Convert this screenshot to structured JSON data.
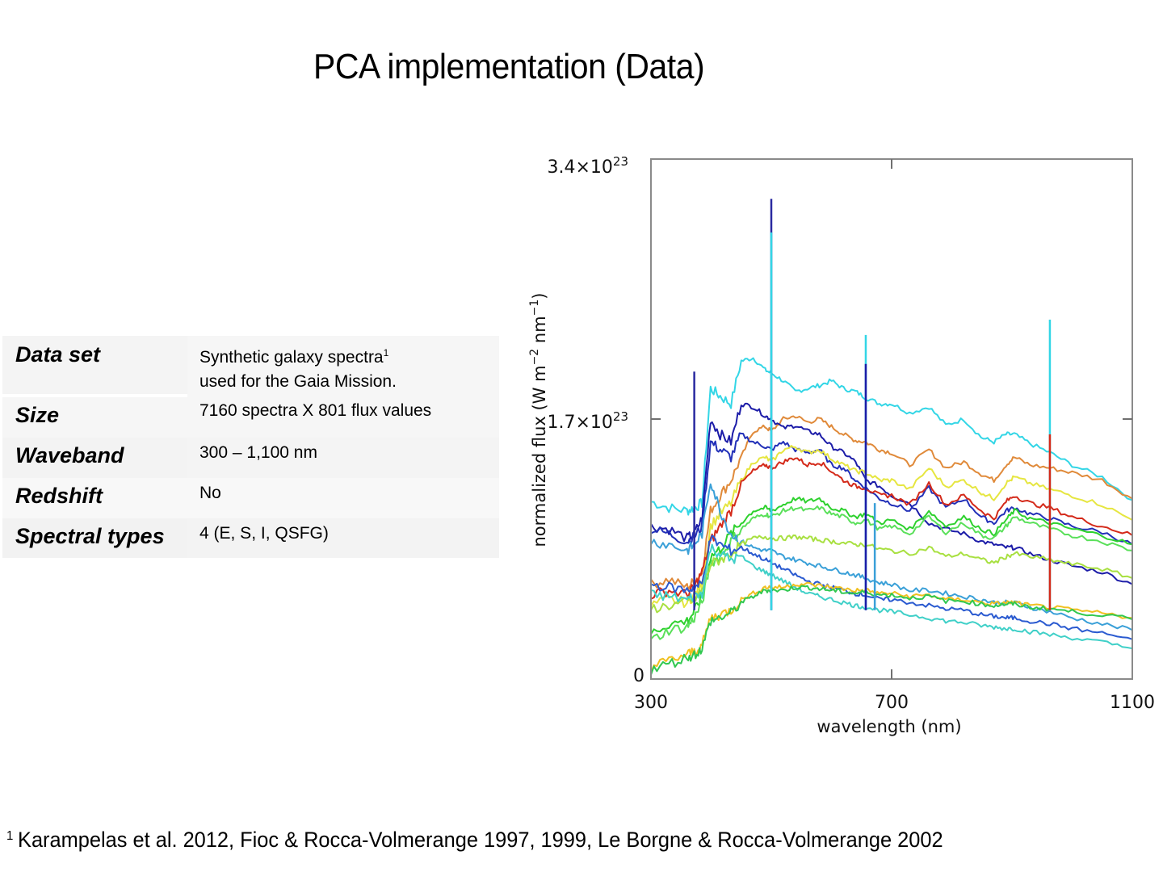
{
  "slide": {
    "title": "PCA implementation (Data)",
    "footnote_marker": "1",
    "footnote": "Karampelas et al. 2012, Fioc & Rocca-Volmerange 1997, 1999, Le Borgne & Rocca-Volmerange 2002"
  },
  "table": {
    "rows": [
      {
        "key": "Data set",
        "value_line1": "Synthetic galaxy spectra",
        "value_sup": "1",
        "value_line2": "used for the Gaia Mission."
      },
      {
        "key": "Size",
        "value": "7160 spectra X 801 flux values"
      },
      {
        "key": "Waveband",
        "value": "300 – 1,100 nm"
      },
      {
        "key": "Redshift",
        "value": "No"
      },
      {
        "key": "Spectral types",
        "value": "4 (E, S, I, QSFG)"
      }
    ]
  },
  "chart_data": {
    "type": "line",
    "title": "",
    "xlabel": "wavelength (nm)",
    "ylabel": "normalized flux (W m^-2 nm^-1)",
    "ylabel_parts": {
      "base": "normalized flux (W m",
      "exp1": "−2",
      "mid": " nm",
      "exp2": "−1",
      "end": ")"
    },
    "xlim": [
      300,
      1100
    ],
    "ylim": [
      0,
      3.4e+23
    ],
    "xticks": [
      300,
      700,
      1100
    ],
    "xtick_labels": [
      "300",
      "700",
      "1100"
    ],
    "yticks": [
      0,
      1.7e+23,
      3.4e+23
    ],
    "ytick_labels": [
      {
        "mantissa": "0",
        "exp": ""
      },
      {
        "mantissa": "1.7×10",
        "exp": "23"
      },
      {
        "mantissa": "3.4×10",
        "exp": "23"
      }
    ],
    "grid": false,
    "legend": "none",
    "units_note": "series values in units of 1e23",
    "x": [
      300,
      330,
      360,
      372,
      385,
      399,
      415,
      433,
      450,
      470,
      490,
      500,
      520,
      540,
      560,
      580,
      600,
      620,
      640,
      657,
      680,
      700,
      730,
      762,
      790,
      820,
      849,
      870,
      890,
      904,
      930,
      963,
      1000,
      1050,
      1100
    ],
    "series": [
      {
        "name": "cyan-top",
        "color": "#33d6e6",
        "values": [
          1.16,
          1.12,
          1.1,
          1.12,
          1.15,
          1.9,
          1.85,
          1.8,
          2.08,
          2.1,
          2.02,
          2.0,
          1.95,
          1.88,
          1.9,
          1.92,
          1.95,
          1.9,
          1.88,
          1.84,
          1.8,
          1.8,
          1.74,
          1.78,
          1.66,
          1.7,
          1.58,
          1.55,
          1.6,
          1.6,
          1.54,
          1.48,
          1.4,
          1.32,
          1.17
        ]
      },
      {
        "name": "orange",
        "color": "#e08a3a",
        "values": [
          0.62,
          0.65,
          0.6,
          0.64,
          0.7,
          1.1,
          1.2,
          1.3,
          1.45,
          1.62,
          1.65,
          1.62,
          1.7,
          1.72,
          1.68,
          1.7,
          1.65,
          1.6,
          1.56,
          1.55,
          1.5,
          1.48,
          1.4,
          1.5,
          1.38,
          1.42,
          1.34,
          1.3,
          1.4,
          1.45,
          1.4,
          1.38,
          1.35,
          1.3,
          1.18
        ]
      },
      {
        "name": "navy-1",
        "color": "#1c1ca8",
        "values": [
          1.0,
          0.98,
          0.92,
          0.95,
          1.05,
          1.7,
          1.6,
          1.55,
          1.8,
          1.78,
          1.72,
          1.7,
          1.64,
          1.66,
          1.62,
          1.6,
          1.52,
          1.48,
          1.42,
          1.3,
          1.26,
          1.2,
          1.15,
          1.02,
          0.98,
          0.95,
          0.9,
          0.88,
          0.86,
          0.86,
          0.82,
          0.78,
          0.74,
          0.7,
          0.62
        ]
      },
      {
        "name": "navy-2",
        "color": "#2230b8",
        "values": [
          0.98,
          0.95,
          0.9,
          0.93,
          1.0,
          1.55,
          1.5,
          1.45,
          1.6,
          1.55,
          1.52,
          1.5,
          1.55,
          1.5,
          1.48,
          1.5,
          1.4,
          1.38,
          1.3,
          1.25,
          1.18,
          1.15,
          1.1,
          1.25,
          1.12,
          1.18,
          1.06,
          1.02,
          1.1,
          1.12,
          1.08,
          1.05,
          1.0,
          0.96,
          0.88
        ]
      },
      {
        "name": "yellow",
        "color": "#e6e640",
        "values": [
          0.48,
          0.52,
          0.5,
          0.55,
          0.62,
          1.0,
          1.08,
          1.15,
          1.3,
          1.42,
          1.45,
          1.42,
          1.5,
          1.52,
          1.48,
          1.5,
          1.44,
          1.4,
          1.36,
          1.35,
          1.3,
          1.3,
          1.24,
          1.38,
          1.26,
          1.3,
          1.22,
          1.18,
          1.28,
          1.32,
          1.28,
          1.24,
          1.2,
          1.14,
          1.04
        ]
      },
      {
        "name": "red",
        "color": "#d42a1a",
        "values": [
          0.55,
          0.58,
          0.55,
          0.6,
          0.7,
          0.9,
          1.0,
          1.1,
          1.28,
          1.36,
          1.4,
          1.38,
          1.42,
          1.45,
          1.4,
          1.42,
          1.36,
          1.3,
          1.26,
          1.25,
          1.2,
          1.2,
          1.14,
          1.28,
          1.14,
          1.2,
          1.1,
          1.05,
          1.16,
          1.2,
          1.15,
          1.12,
          1.06,
          1.0,
          0.94
        ]
      },
      {
        "name": "green-1",
        "color": "#2ed12e",
        "values": [
          0.3,
          0.36,
          0.38,
          0.44,
          0.55,
          0.8,
          0.85,
          0.95,
          1.02,
          1.1,
          1.12,
          1.1,
          1.14,
          1.18,
          1.16,
          1.18,
          1.12,
          1.1,
          1.06,
          1.08,
          1.02,
          1.04,
          0.98,
          1.1,
          1.0,
          1.06,
          0.98,
          0.95,
          1.04,
          1.1,
          1.05,
          1.02,
          0.98,
          0.94,
          0.88
        ]
      },
      {
        "name": "green-2",
        "color": "#5ae05a",
        "values": [
          0.25,
          0.32,
          0.34,
          0.4,
          0.5,
          0.76,
          0.8,
          0.9,
          0.98,
          1.05,
          1.08,
          1.06,
          1.1,
          1.12,
          1.1,
          1.12,
          1.08,
          1.06,
          1.02,
          1.04,
          0.98,
          1.0,
          0.95,
          1.06,
          0.96,
          1.02,
          0.94,
          0.92,
          1.0,
          1.06,
          1.02,
          0.98,
          0.94,
          0.9,
          0.84
        ]
      },
      {
        "name": "teal-blue",
        "color": "#3aa0d8",
        "values": [
          0.9,
          0.88,
          0.84,
          0.88,
          0.95,
          1.3,
          1.1,
          0.95,
          0.9,
          0.86,
          0.84,
          0.84,
          0.8,
          0.78,
          0.76,
          0.74,
          0.72,
          0.7,
          0.68,
          0.66,
          0.63,
          0.62,
          0.58,
          0.58,
          0.56,
          0.54,
          0.52,
          0.5,
          0.5,
          0.5,
          0.47,
          0.44,
          0.4,
          0.36,
          0.32
        ]
      },
      {
        "name": "lime",
        "color": "#a8e040",
        "values": [
          0.46,
          0.48,
          0.5,
          0.52,
          0.58,
          0.75,
          0.78,
          0.82,
          0.88,
          0.92,
          0.93,
          0.92,
          0.92,
          0.93,
          0.92,
          0.91,
          0.9,
          0.89,
          0.88,
          0.88,
          0.85,
          0.84,
          0.82,
          0.86,
          0.8,
          0.82,
          0.78,
          0.76,
          0.8,
          0.82,
          0.8,
          0.78,
          0.75,
          0.72,
          0.66
        ]
      },
      {
        "name": "blue-low",
        "color": "#2a5ad0",
        "values": [
          0.62,
          0.6,
          0.58,
          0.6,
          0.62,
          0.92,
          0.88,
          0.84,
          0.86,
          0.82,
          0.78,
          0.76,
          0.72,
          0.68,
          0.64,
          0.62,
          0.6,
          0.58,
          0.56,
          0.55,
          0.52,
          0.52,
          0.5,
          0.48,
          0.46,
          0.45,
          0.42,
          0.41,
          0.4,
          0.4,
          0.38,
          0.36,
          0.33,
          0.3,
          0.26
        ]
      },
      {
        "name": "cyan-low",
        "color": "#40d0c8",
        "values": [
          0.55,
          0.54,
          0.52,
          0.54,
          0.56,
          0.86,
          0.82,
          0.78,
          0.8,
          0.74,
          0.7,
          0.68,
          0.64,
          0.6,
          0.56,
          0.54,
          0.52,
          0.5,
          0.48,
          0.47,
          0.45,
          0.44,
          0.42,
          0.4,
          0.38,
          0.37,
          0.35,
          0.34,
          0.33,
          0.33,
          0.31,
          0.29,
          0.27,
          0.24,
          0.2
        ]
      },
      {
        "name": "yellow-low",
        "color": "#f0c020",
        "values": [
          0.08,
          0.12,
          0.16,
          0.18,
          0.22,
          0.4,
          0.42,
          0.45,
          0.52,
          0.56,
          0.6,
          0.6,
          0.6,
          0.62,
          0.62,
          0.61,
          0.6,
          0.59,
          0.58,
          0.58,
          0.56,
          0.56,
          0.54,
          0.55,
          0.52,
          0.52,
          0.5,
          0.49,
          0.5,
          0.5,
          0.48,
          0.47,
          0.45,
          0.43,
          0.4
        ]
      },
      {
        "name": "green-low",
        "color": "#30c850",
        "values": [
          0.06,
          0.1,
          0.14,
          0.16,
          0.2,
          0.38,
          0.4,
          0.43,
          0.5,
          0.54,
          0.58,
          0.58,
          0.58,
          0.6,
          0.6,
          0.59,
          0.58,
          0.57,
          0.56,
          0.57,
          0.55,
          0.55,
          0.53,
          0.54,
          0.51,
          0.51,
          0.49,
          0.48,
          0.49,
          0.49,
          0.47,
          0.46,
          0.44,
          0.42,
          0.39
        ]
      }
    ],
    "emission_lines": [
      {
        "x": 372,
        "peak": 2.01,
        "color": "#2a2aa0"
      },
      {
        "x": 500,
        "peak": 3.14,
        "color": "#2a2aa0"
      },
      {
        "x": 500,
        "peak": 2.92,
        "color": "#33d6e6"
      },
      {
        "x": 657,
        "peak": 2.25,
        "color": "#33d6e6"
      },
      {
        "x": 657,
        "peak": 2.06,
        "color": "#1c1ca8"
      },
      {
        "x": 672,
        "peak": 1.15,
        "color": "#3aa0d8"
      },
      {
        "x": 963,
        "peak": 2.35,
        "color": "#33d6e6"
      },
      {
        "x": 963,
        "peak": 1.6,
        "color": "#d42a1a"
      }
    ]
  }
}
